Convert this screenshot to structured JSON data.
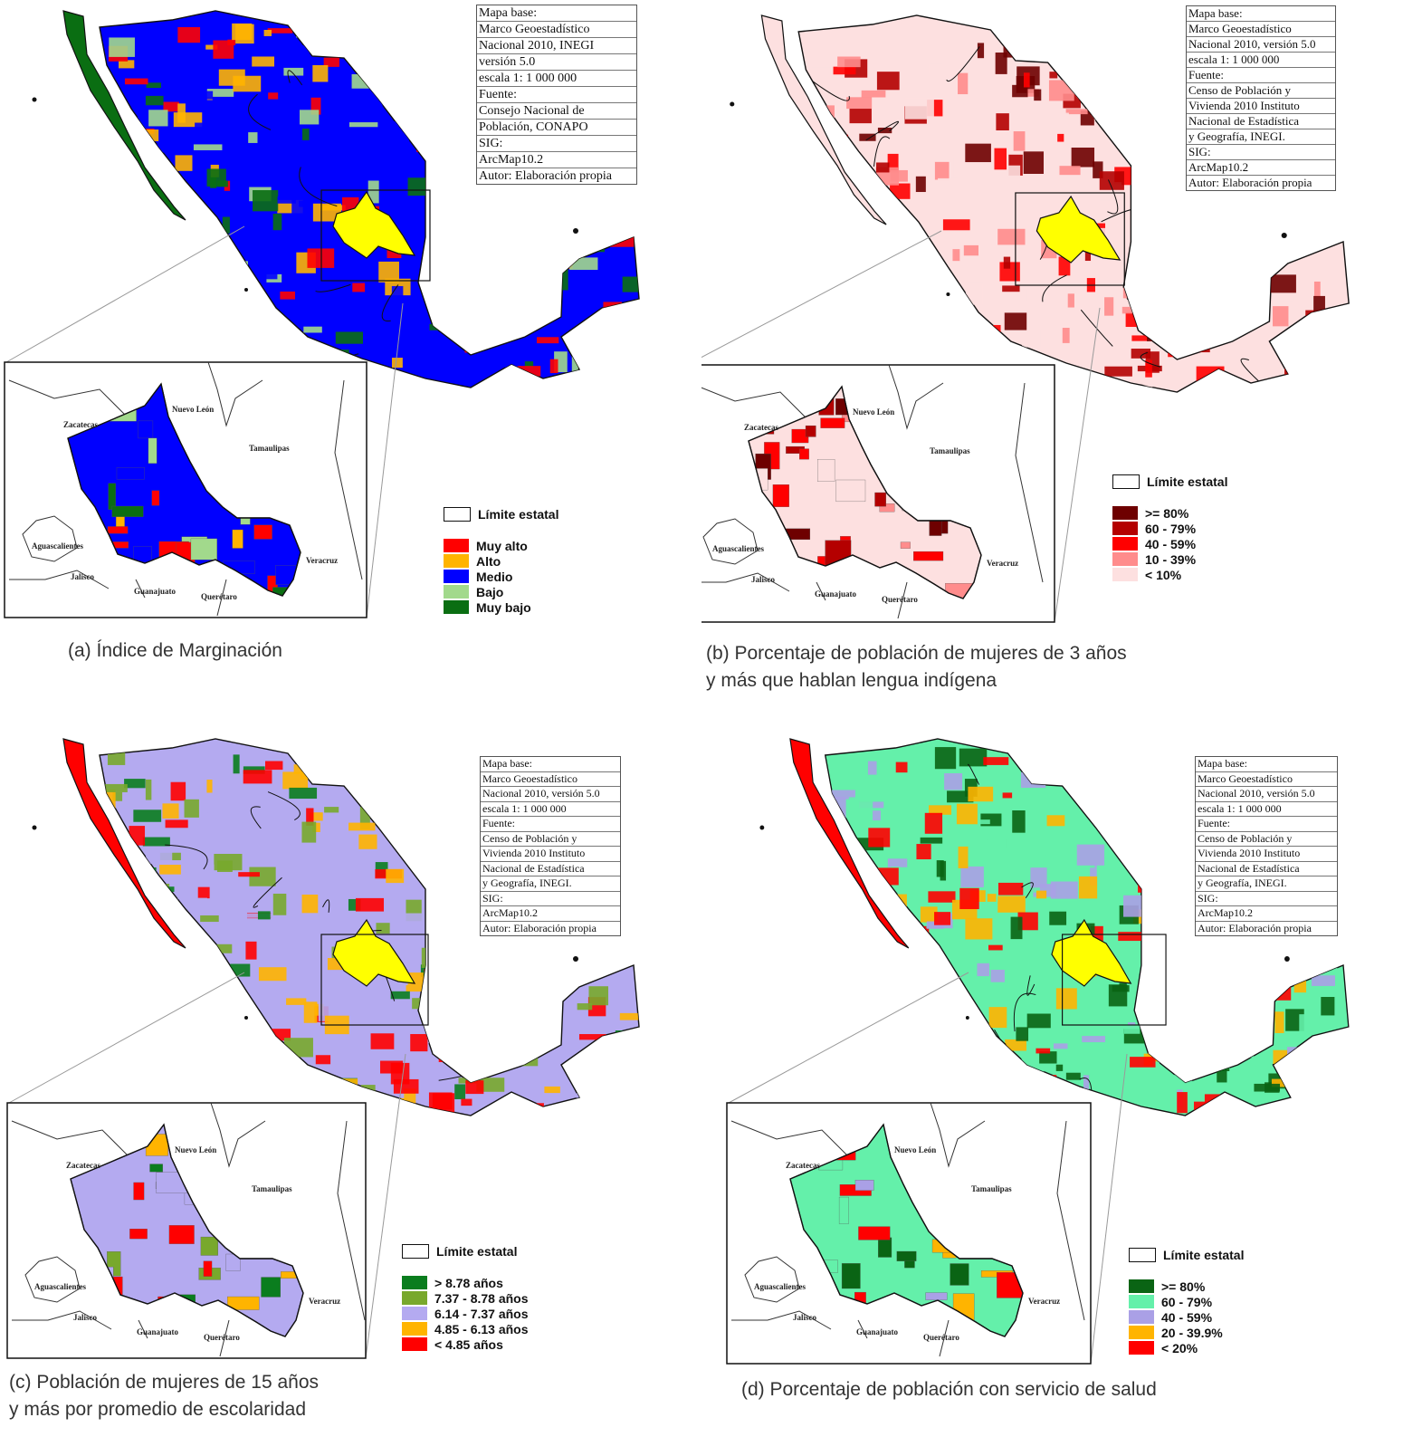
{
  "panels": [
    {
      "id": "a",
      "caption": [
        "(a) Índice de Marginación"
      ],
      "metadata": [
        "Mapa base:",
        "Marco Geoestadístico",
        "Nacional 2010, INEGI",
        "versión 5.0",
        "escala 1: 1 000 000",
        "Fuente:",
        "Consejo Nacional de",
        "Población, CONAPO",
        "SIG:",
        "ArcMap10.2",
        "Autor: Elaboración propia"
      ],
      "legend_limit": "Límite estatal",
      "legend": [
        {
          "label": "Muy alto",
          "color": "#ff0000"
        },
        {
          "label": "Alto",
          "color": "#ffb400"
        },
        {
          "label": "Medio",
          "color": "#0000ff"
        },
        {
          "label": "Bajo",
          "color": "#a2d98c"
        },
        {
          "label": "Muy bajo",
          "color": "#0a6e12"
        }
      ],
      "map_base": "#0000ff",
      "inset_base": "#0000ff"
    },
    {
      "id": "b",
      "caption": [
        "(b) Porcentaje de población de mujeres de 3 años",
        "y más que hablan lengua indígena"
      ],
      "metadata": [
        "Mapa base:",
        "Marco Geoestadístico",
        "Nacional 2010, versión 5.0",
        "escala 1: 1 000 000",
        "Fuente:",
        "Censo de Población y",
        "Vivienda 2010 Instituto",
        "Nacional de Estadística",
        "y Geografía, INEGI.",
        "SIG:",
        "ArcMap10.2",
        "Autor: Elaboración propia"
      ],
      "legend_limit": "Límite estatal",
      "legend": [
        {
          "label": ">= 80%",
          "color": "#6e0000"
        },
        {
          "label": "60 - 79%",
          "color": "#b40000"
        },
        {
          "label": "40 - 59%",
          "color": "#ff0000"
        },
        {
          "label": "10 - 39%",
          "color": "#ff8c8c"
        },
        {
          "label": "< 10%",
          "color": "#fde0e0"
        }
      ],
      "map_base": "#fde0e0",
      "inset_base": "#fde0e0"
    },
    {
      "id": "c",
      "caption": [
        "(c) Población de mujeres de 15 años",
        "y más por promedio de escolaridad"
      ],
      "metadata": [
        "Mapa base:",
        "Marco Geoestadístico",
        "Nacional 2010, versión 5.0",
        "escala 1: 1 000 000",
        "Fuente:",
        "Censo de Población y",
        "Vivienda 2010 Instituto",
        "Nacional de Estadística",
        "y Geografía, INEGI.",
        "SIG:",
        "ArcMap10.2",
        "Autor: Elaboración propia"
      ],
      "legend_limit": "Límite estatal",
      "legend": [
        {
          "label": "> 8.78 años",
          "color": "#0a7d1e"
        },
        {
          "label": "7.37 - 8.78 años",
          "color": "#78a82c"
        },
        {
          "label": "6.14 - 7.37 años",
          "color": "#b4aaf0"
        },
        {
          "label": "4.85 - 6.13 años",
          "color": "#ffb400"
        },
        {
          "label": "< 4.85 años",
          "color": "#ff0000"
        }
      ],
      "map_base": "#b4aaf0",
      "inset_base": "#b4aaf0"
    },
    {
      "id": "d",
      "caption": [
        "(d) Porcentaje de población con servicio de salud"
      ],
      "metadata": [
        "Mapa base:",
        "Marco Geoestadístico",
        "Nacional 2010, versión 5.0",
        "escala 1: 1 000 000",
        "Fuente:",
        "Censo de Población y",
        "Vivienda 2010 Instituto",
        "Nacional de Estadística",
        "y Geografía, INEGI.",
        "SIG:",
        "ArcMap10.2",
        "Autor: Elaboración propia"
      ],
      "legend_limit": "Límite estatal",
      "legend": [
        {
          "label": ">= 80%",
          "color": "#0a6414"
        },
        {
          "label": "60 - 79%",
          "color": "#64f0aa"
        },
        {
          "label": "40 - 59%",
          "color": "#aaa0e6"
        },
        {
          "label": "20 - 39.9%",
          "color": "#ffb400"
        },
        {
          "label": "< 20%",
          "color": "#ff0000"
        }
      ],
      "map_base": "#64f0aa",
      "inset_base": "#64f0aa"
    }
  ],
  "inset_labels": [
    "Zacatecas",
    "Nuevo León",
    "Tamaulipas",
    "Aguascalientes",
    "Jalisco",
    "Guanajuato",
    "Querétaro",
    "Veracruz"
  ],
  "highlight_state_color": "#ffff00"
}
